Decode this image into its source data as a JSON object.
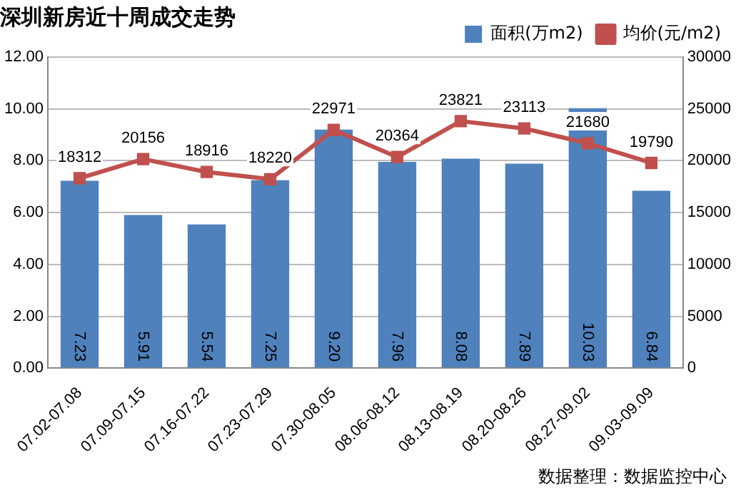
{
  "chart_data": {
    "type": "bar",
    "title": "深圳新房近十周成交走势",
    "categories": [
      "07.02-07.08",
      "07.09-07.15",
      "07.16-07.22",
      "07.23-07.29",
      "07.30-08.05",
      "08.06-08.12",
      "08.13-08.19",
      "08.20-08.26",
      "08.27-09.02",
      "09.03-09.09"
    ],
    "series": [
      {
        "name": "面积(万m2)",
        "color": "#4f81bd",
        "values": [
          7.23,
          5.91,
          5.54,
          7.25,
          9.2,
          7.96,
          8.08,
          7.89,
          10.03,
          6.84
        ],
        "value_labels": [
          "7.23",
          "5.91",
          "5.54",
          "7.25",
          "9.20",
          "7.96",
          "8.08",
          "7.89",
          "10.03",
          "6.84"
        ]
      },
      {
        "name": "均价(元/m2)",
        "type": "line",
        "axis": "y2",
        "color": "#c0504d",
        "values": [
          18312,
          20156,
          18916,
          18220,
          22971,
          20364,
          23821,
          23113,
          21680,
          19790
        ]
      }
    ],
    "data_labels": true,
    "ylim": [
      0,
      12
    ],
    "yticks": [
      {
        "value": 0,
        "label": "0.00"
      },
      {
        "value": 2,
        "label": "2.00"
      },
      {
        "value": 4,
        "label": "4.00"
      },
      {
        "value": 6,
        "label": "6.00"
      },
      {
        "value": 8,
        "label": "8.00"
      },
      {
        "value": 10,
        "label": "10.00"
      },
      {
        "value": 12,
        "label": "12.00"
      }
    ],
    "y2lim": [
      0,
      30000
    ],
    "y2ticks": [
      0,
      5000,
      10000,
      15000,
      20000,
      25000,
      30000
    ],
    "grid": "y",
    "legend": "top right",
    "marker": "square",
    "line_style": "solid",
    "annotations": [
      "数据整理：数据监控中心"
    ]
  }
}
